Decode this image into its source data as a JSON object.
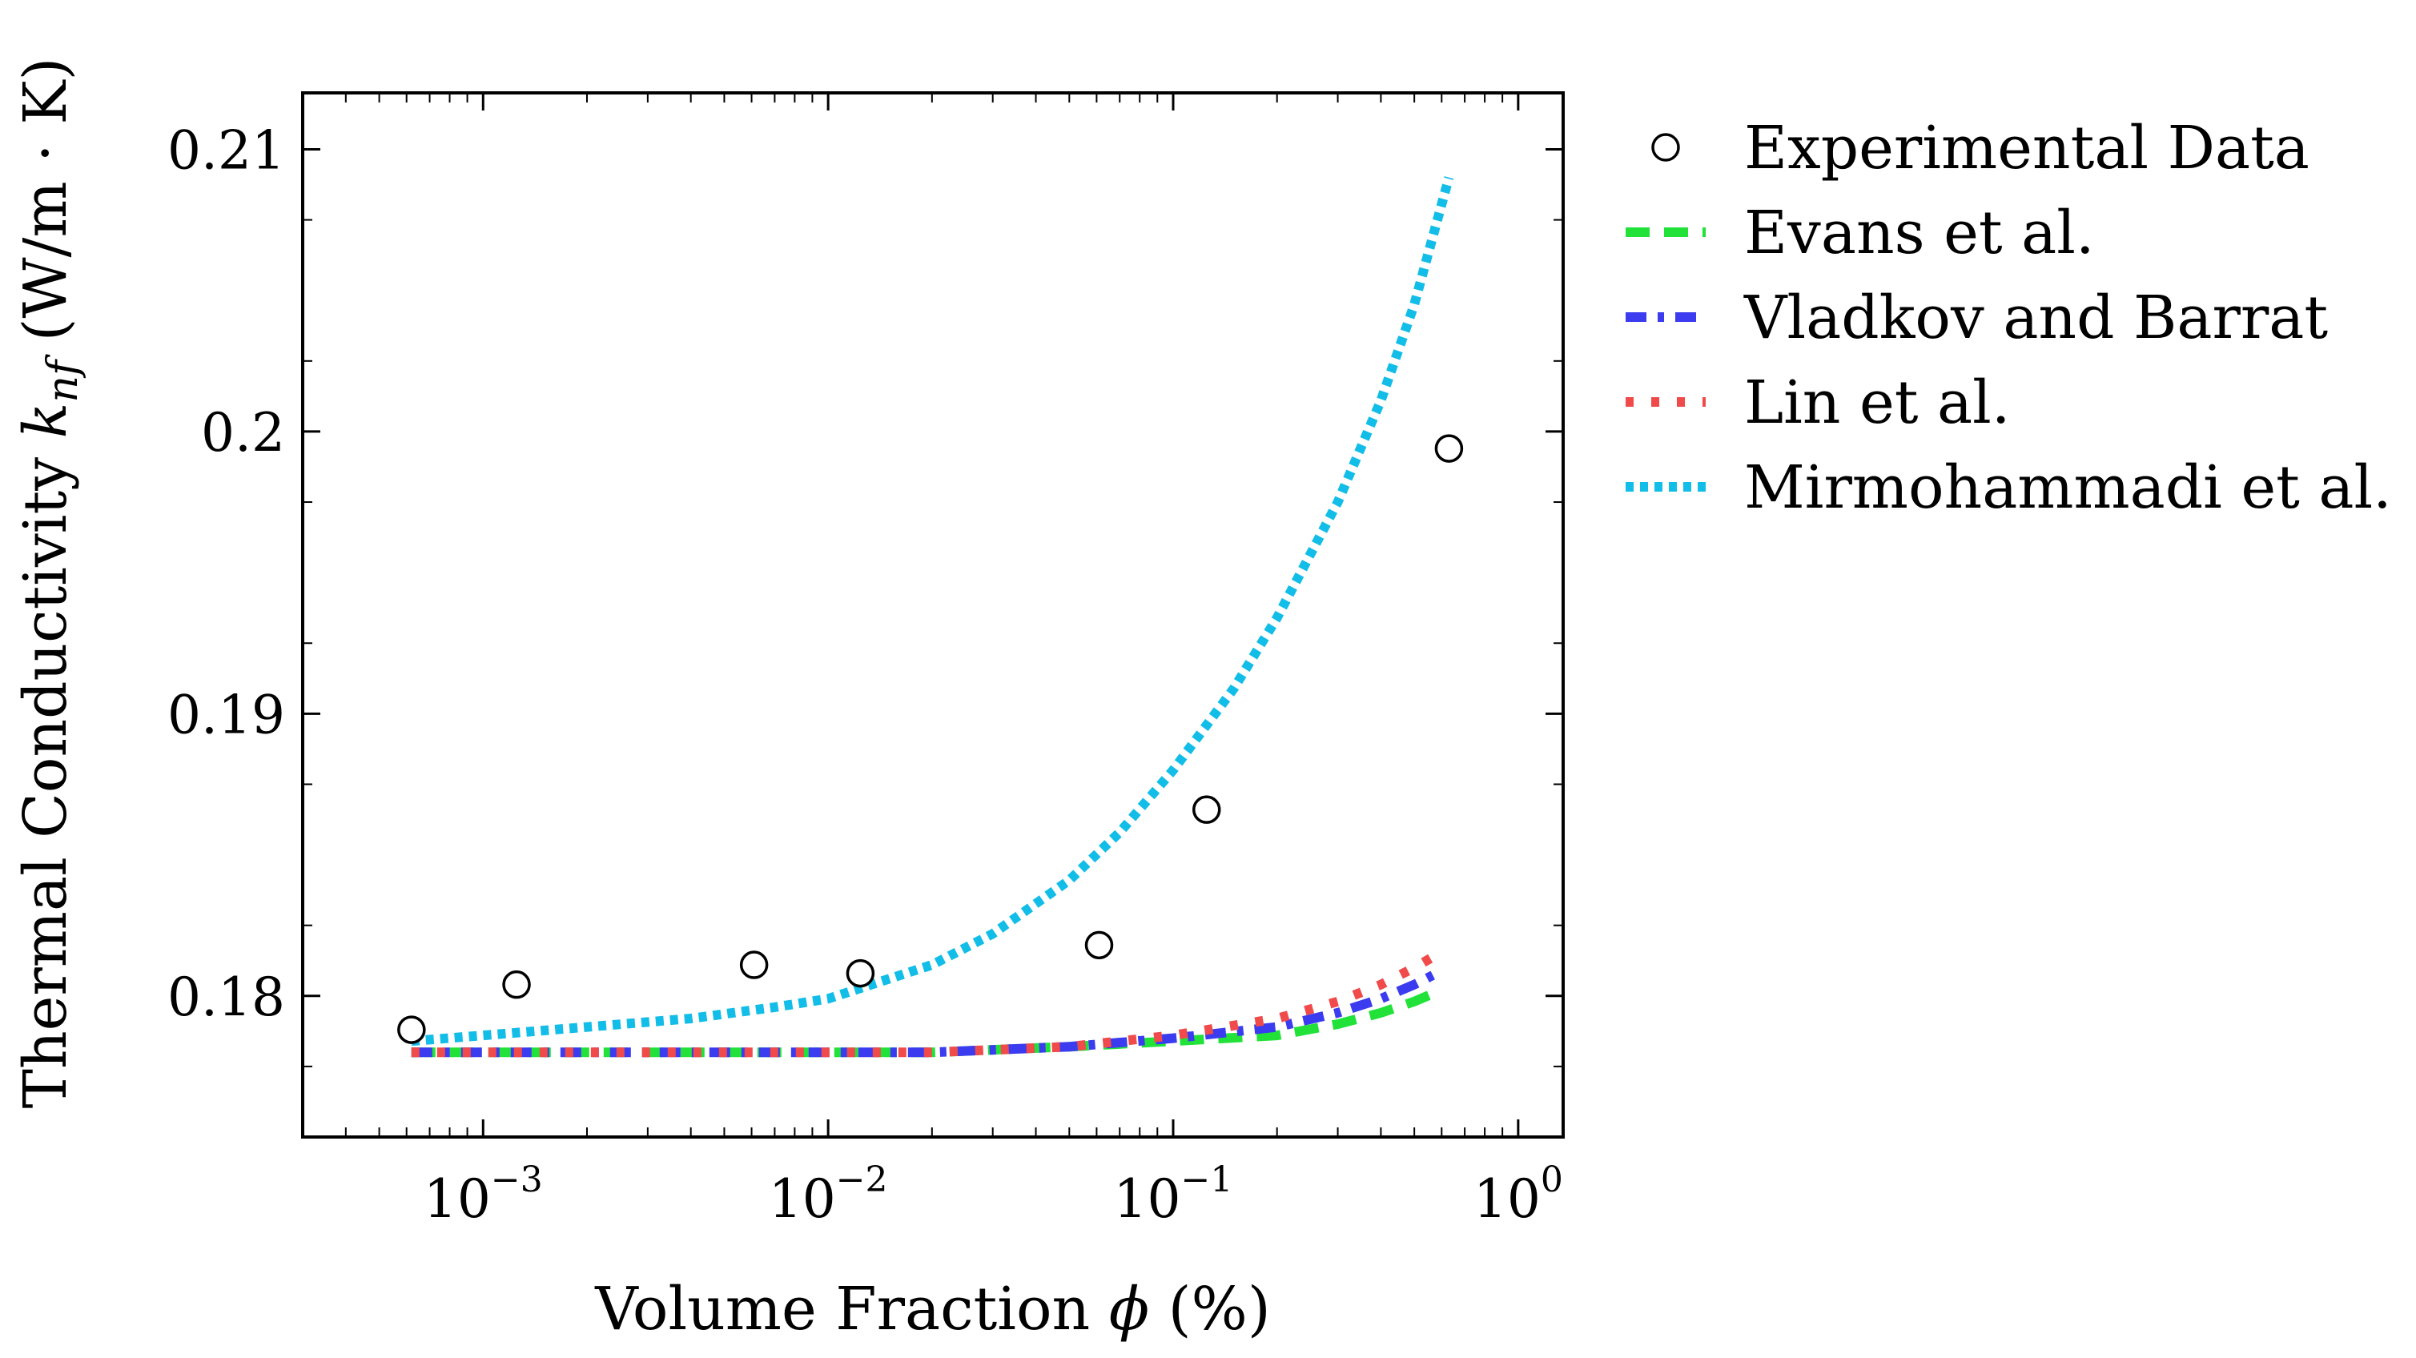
{
  "chart_data": {
    "type": "line",
    "title": "",
    "xlabel": "Volume Fraction ϕ (%)",
    "ylabel": "Thermal Conductivity k_nf (W/m · K)",
    "ylabel_parts": {
      "prefix": "Thermal Conductivity ",
      "var": "k",
      "sub": "nf",
      "suffix": " (W/m · K)"
    },
    "xlabel_parts": {
      "prefix": "Volume Fraction ",
      "var": "ϕ",
      "suffix": " (%)"
    },
    "x_scale": "log",
    "xlim": [
      0.0003,
      1.35
    ],
    "ylim": [
      0.175,
      0.212
    ],
    "grid": false,
    "legend_position": "outside-right",
    "x_ticks": [
      {
        "value": 0.001,
        "base": "10",
        "exp": "−3"
      },
      {
        "value": 0.01,
        "base": "10",
        "exp": "−2"
      },
      {
        "value": 0.1,
        "base": "10",
        "exp": "−1"
      },
      {
        "value": 1,
        "base": "10",
        "exp": "0"
      }
    ],
    "y_ticks": [
      {
        "value": 0.18,
        "label": "0.18"
      },
      {
        "value": 0.19,
        "label": "0.19"
      },
      {
        "value": 0.2,
        "label": "0.2"
      },
      {
        "value": 0.21,
        "label": "0.21"
      }
    ],
    "series": [
      {
        "name": "Experimental Data",
        "kind": "scatter",
        "color": "#000000",
        "x": [
          0.00062,
          0.00125,
          0.0061,
          0.0124,
          0.061,
          0.125,
          0.63
        ],
        "y": [
          0.1788,
          0.1804,
          0.1811,
          0.1808,
          0.1818,
          0.1866,
          0.1994
        ]
      },
      {
        "name": "Evans et al.",
        "kind": "line",
        "style": "dashed",
        "color": "#22e23a",
        "x": [
          0.00062,
          0.001,
          0.002,
          0.005,
          0.01,
          0.02,
          0.05,
          0.1,
          0.2,
          0.3,
          0.4,
          0.5,
          0.57
        ],
        "y": [
          0.178,
          0.178,
          0.178,
          0.178,
          0.178,
          0.178,
          0.1782,
          0.1784,
          0.1786,
          0.179,
          0.1794,
          0.1798,
          0.1801
        ]
      },
      {
        "name": "Vladkov and Barrat",
        "kind": "line",
        "style": "dashdot",
        "color": "#3b3bf0",
        "x": [
          0.00062,
          0.001,
          0.002,
          0.005,
          0.01,
          0.02,
          0.05,
          0.1,
          0.2,
          0.3,
          0.4,
          0.5,
          0.58
        ],
        "y": [
          0.178,
          0.178,
          0.178,
          0.178,
          0.178,
          0.178,
          0.1782,
          0.1785,
          0.1789,
          0.1794,
          0.1799,
          0.1804,
          0.1808
        ]
      },
      {
        "name": "Lin et al.",
        "kind": "line",
        "style": "dotted",
        "color": "#f04a4a",
        "x": [
          0.00062,
          0.001,
          0.002,
          0.005,
          0.01,
          0.02,
          0.05,
          0.1,
          0.2,
          0.3,
          0.4,
          0.5,
          0.57
        ],
        "y": [
          0.178,
          0.178,
          0.178,
          0.178,
          0.178,
          0.178,
          0.1782,
          0.1786,
          0.1792,
          0.1798,
          0.1804,
          0.181,
          0.1814
        ]
      },
      {
        "name": "Mirmohammadi et al.",
        "kind": "line",
        "style": "densely-dotted",
        "color": "#12bde8",
        "x": [
          0.00062,
          0.001,
          0.002,
          0.004,
          0.007,
          0.01,
          0.02,
          0.03,
          0.05,
          0.07,
          0.1,
          0.15,
          0.2,
          0.3,
          0.4,
          0.5,
          0.63
        ],
        "y": [
          0.1784,
          0.1786,
          0.1789,
          0.1792,
          0.1796,
          0.1799,
          0.1811,
          0.1822,
          0.1841,
          0.1858,
          0.188,
          0.1909,
          0.1934,
          0.1975,
          0.2011,
          0.2045,
          0.209
        ]
      }
    ]
  }
}
